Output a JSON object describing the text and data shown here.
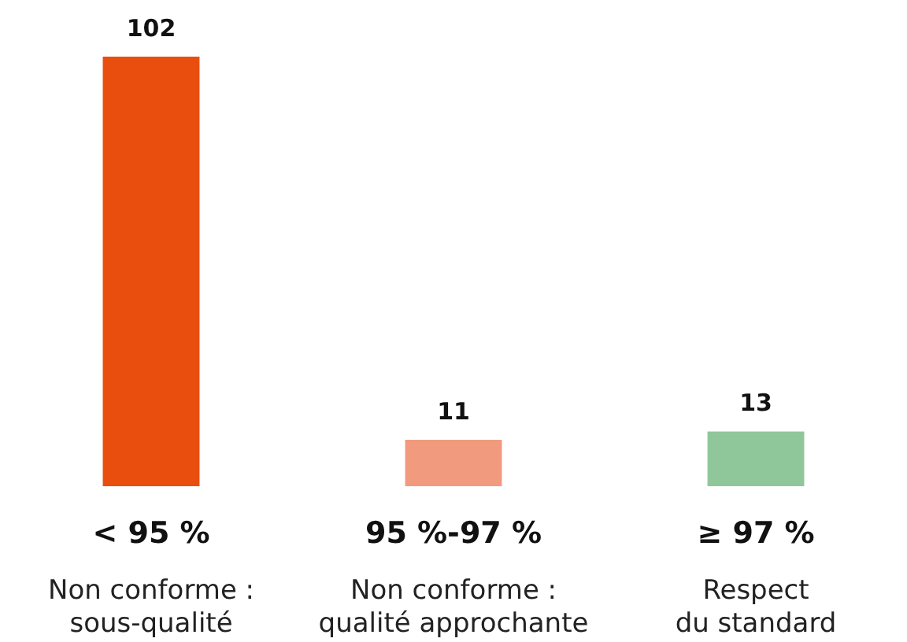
{
  "chart_data": {
    "type": "bar",
    "categories": [
      "< 95 %\nNon conforme :\nsous-qualité",
      "95 %-97 %\nNon conforme :\nqualité approchante",
      "≥ 97 %\nRespect\ndu standard"
    ],
    "values": [
      102,
      11,
      13
    ],
    "colors": [
      "#e94e0f",
      "#f29a7e",
      "#8fc79a"
    ],
    "data_labels": true,
    "tick_labels": "x"
  }
}
